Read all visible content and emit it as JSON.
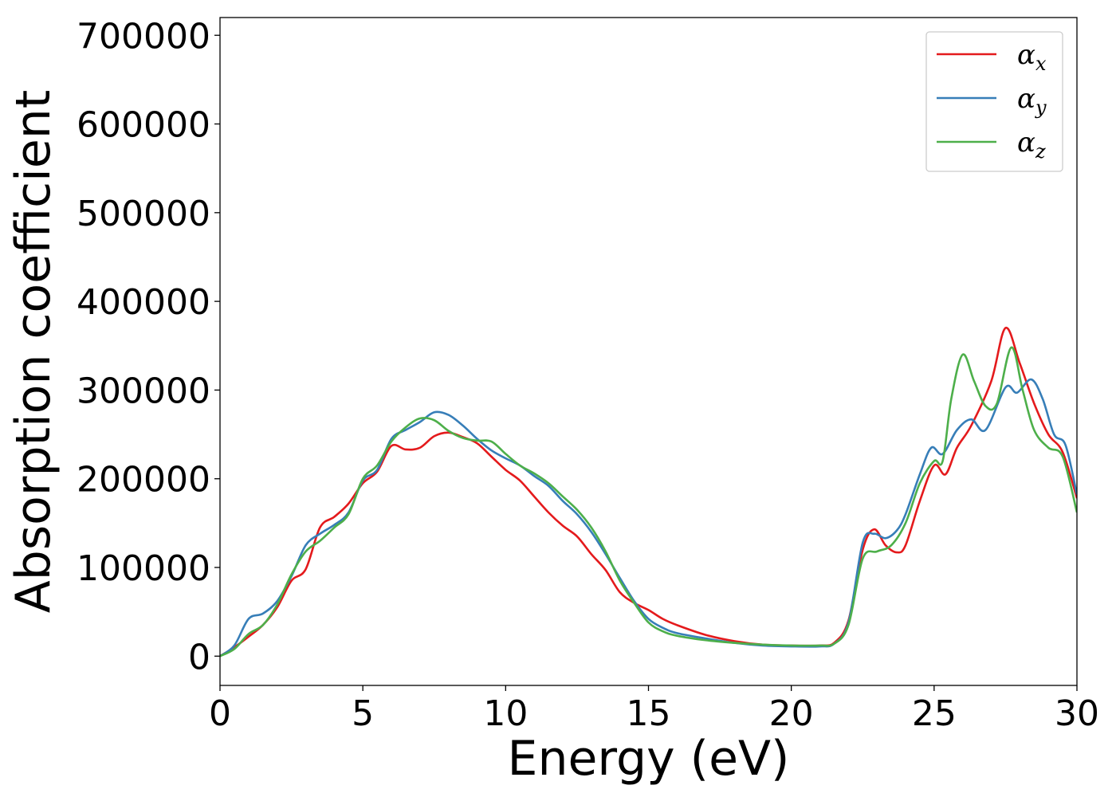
{
  "chart_data": {
    "type": "line",
    "title": "",
    "xlabel": "Energy (eV)",
    "ylabel": "Absorption coefficient",
    "xlim": [
      0,
      30
    ],
    "ylim": [
      -33000,
      720000
    ],
    "x_ticks": [
      "0",
      "5",
      "10",
      "15",
      "20",
      "25",
      "30"
    ],
    "y_ticks": [
      "0",
      "100000",
      "200000",
      "300000",
      "400000",
      "500000",
      "600000",
      "700000"
    ],
    "grid": false,
    "legend": "top-right",
    "colors": {
      "alpha_x": "#e41a1c",
      "alpha_y": "#377eb8",
      "alpha_z": "#4daf4a"
    },
    "series": [
      {
        "name": "α_x",
        "color": "#e41a1c",
        "points": [
          [
            0,
            0
          ],
          [
            0.5,
            10000
          ],
          [
            1,
            22000
          ],
          [
            1.5,
            35000
          ],
          [
            2,
            55000
          ],
          [
            2.5,
            85000
          ],
          [
            3,
            98000
          ],
          [
            3.5,
            145000
          ],
          [
            4,
            157000
          ],
          [
            4.5,
            172000
          ],
          [
            5,
            195000
          ],
          [
            5.5,
            208000
          ],
          [
            6,
            237000
          ],
          [
            6.5,
            233000
          ],
          [
            7,
            235000
          ],
          [
            7.5,
            248000
          ],
          [
            8,
            252000
          ],
          [
            8.5,
            247000
          ],
          [
            9,
            240000
          ],
          [
            9.5,
            225000
          ],
          [
            10,
            210000
          ],
          [
            10.5,
            198000
          ],
          [
            11,
            180000
          ],
          [
            11.5,
            162000
          ],
          [
            12,
            147000
          ],
          [
            12.5,
            135000
          ],
          [
            13,
            115000
          ],
          [
            13.5,
            97000
          ],
          [
            14,
            72000
          ],
          [
            14.5,
            60000
          ],
          [
            15,
            52000
          ],
          [
            15.5,
            42000
          ],
          [
            16,
            35000
          ],
          [
            17,
            24000
          ],
          [
            18,
            17000
          ],
          [
            19,
            13000
          ],
          [
            20,
            12000
          ],
          [
            21,
            12000
          ],
          [
            21.5,
            15000
          ],
          [
            22,
            40000
          ],
          [
            22.5,
            120000
          ],
          [
            22.9,
            143000
          ],
          [
            23.3,
            125000
          ],
          [
            23.7,
            117000
          ],
          [
            24,
            125000
          ],
          [
            24.5,
            175000
          ],
          [
            25,
            215000
          ],
          [
            25.4,
            205000
          ],
          [
            25.8,
            235000
          ],
          [
            26.3,
            260000
          ],
          [
            27,
            310000
          ],
          [
            27.5,
            370000
          ],
          [
            28,
            330000
          ],
          [
            28.5,
            285000
          ],
          [
            29,
            250000
          ],
          [
            29.5,
            230000
          ],
          [
            30,
            178000
          ]
        ]
      },
      {
        "name": "α_y",
        "color": "#377eb8",
        "points": [
          [
            0,
            0
          ],
          [
            0.5,
            12000
          ],
          [
            1,
            42000
          ],
          [
            1.5,
            48000
          ],
          [
            2,
            62000
          ],
          [
            2.5,
            90000
          ],
          [
            3,
            125000
          ],
          [
            3.5,
            138000
          ],
          [
            4,
            148000
          ],
          [
            4.5,
            162000
          ],
          [
            5,
            198000
          ],
          [
            5.5,
            210000
          ],
          [
            6,
            245000
          ],
          [
            6.5,
            255000
          ],
          [
            7,
            264000
          ],
          [
            7.5,
            275000
          ],
          [
            8,
            272000
          ],
          [
            8.5,
            260000
          ],
          [
            9,
            245000
          ],
          [
            9.5,
            232000
          ],
          [
            10,
            223000
          ],
          [
            10.5,
            215000
          ],
          [
            11,
            203000
          ],
          [
            11.5,
            192000
          ],
          [
            12,
            175000
          ],
          [
            12.5,
            160000
          ],
          [
            13,
            140000
          ],
          [
            13.5,
            115000
          ],
          [
            14,
            88000
          ],
          [
            14.5,
            62000
          ],
          [
            15,
            42000
          ],
          [
            15.5,
            32000
          ],
          [
            16,
            26000
          ],
          [
            17,
            20000
          ],
          [
            18,
            15000
          ],
          [
            19,
            12000
          ],
          [
            20,
            11000
          ],
          [
            21,
            11000
          ],
          [
            21.5,
            14000
          ],
          [
            22,
            38000
          ],
          [
            22.5,
            128000
          ],
          [
            22.9,
            138000
          ],
          [
            23.3,
            133000
          ],
          [
            23.7,
            142000
          ],
          [
            24,
            160000
          ],
          [
            24.5,
            205000
          ],
          [
            24.9,
            235000
          ],
          [
            25.3,
            228000
          ],
          [
            25.8,
            255000
          ],
          [
            26.3,
            267000
          ],
          [
            26.8,
            255000
          ],
          [
            27.5,
            303000
          ],
          [
            27.9,
            297000
          ],
          [
            28.4,
            312000
          ],
          [
            28.8,
            290000
          ],
          [
            29.2,
            250000
          ],
          [
            29.6,
            238000
          ],
          [
            30,
            182000
          ]
        ]
      },
      {
        "name": "α_z",
        "color": "#4daf4a",
        "points": [
          [
            0,
            0
          ],
          [
            0.5,
            8000
          ],
          [
            1,
            25000
          ],
          [
            1.5,
            35000
          ],
          [
            2,
            58000
          ],
          [
            2.5,
            92000
          ],
          [
            3,
            118000
          ],
          [
            3.5,
            130000
          ],
          [
            4,
            145000
          ],
          [
            4.5,
            160000
          ],
          [
            5,
            200000
          ],
          [
            5.5,
            215000
          ],
          [
            6,
            242000
          ],
          [
            6.5,
            258000
          ],
          [
            7,
            268000
          ],
          [
            7.5,
            266000
          ],
          [
            8,
            254000
          ],
          [
            8.5,
            246000
          ],
          [
            9,
            243000
          ],
          [
            9.5,
            242000
          ],
          [
            10,
            228000
          ],
          [
            10.5,
            215000
          ],
          [
            11,
            206000
          ],
          [
            11.5,
            195000
          ],
          [
            12,
            180000
          ],
          [
            12.5,
            165000
          ],
          [
            13,
            145000
          ],
          [
            13.5,
            118000
          ],
          [
            14,
            85000
          ],
          [
            14.5,
            60000
          ],
          [
            15,
            38000
          ],
          [
            15.5,
            28000
          ],
          [
            16,
            23000
          ],
          [
            17,
            18000
          ],
          [
            18,
            15000
          ],
          [
            19,
            13000
          ],
          [
            20,
            12000
          ],
          [
            21,
            12000
          ],
          [
            21.5,
            14000
          ],
          [
            22,
            35000
          ],
          [
            22.5,
            110000
          ],
          [
            23,
            118000
          ],
          [
            23.5,
            125000
          ],
          [
            24,
            150000
          ],
          [
            24.5,
            195000
          ],
          [
            25,
            220000
          ],
          [
            25.3,
            220000
          ],
          [
            25.6,
            290000
          ],
          [
            26,
            340000
          ],
          [
            26.4,
            310000
          ],
          [
            26.8,
            282000
          ],
          [
            27.2,
            285000
          ],
          [
            27.7,
            348000
          ],
          [
            28.1,
            300000
          ],
          [
            28.5,
            255000
          ],
          [
            29,
            235000
          ],
          [
            29.5,
            225000
          ],
          [
            30,
            162000
          ]
        ]
      }
    ]
  }
}
